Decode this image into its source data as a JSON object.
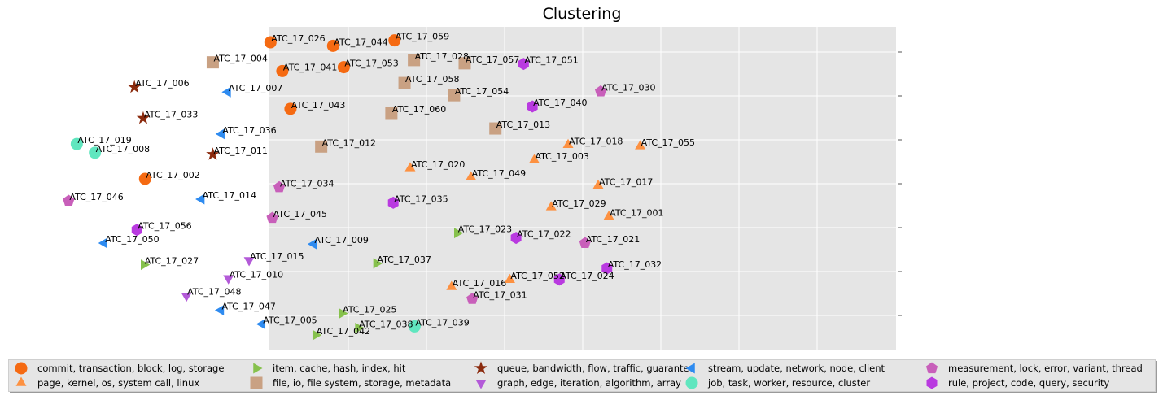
{
  "chart_data": {
    "type": "scatter",
    "title": "Clustering",
    "xlabel": "",
    "ylabel": "",
    "grid": true,
    "legend_position": "bottom",
    "xlim": [
      0,
      100
    ],
    "ylim": [
      0,
      100
    ],
    "series": [
      {
        "name": "commit, transaction, block, log, storage",
        "marker": "circle",
        "color": "#f56a12",
        "points": [
          {
            "label": "ATC_17_026",
            "x": 36.4,
            "y": 95.2
          },
          {
            "label": "ATC_17_044",
            "x": 46.4,
            "y": 94.1
          },
          {
            "label": "ATC_17_059",
            "x": 56.2,
            "y": 95.8
          },
          {
            "label": "ATC_17_053",
            "x": 48.1,
            "y": 87.5
          },
          {
            "label": "ATC_17_041",
            "x": 38.3,
            "y": 86.3
          },
          {
            "label": "ATC_17_043",
            "x": 39.6,
            "y": 74.6
          },
          {
            "label": "ATC_17_002",
            "x": 16.4,
            "y": 52.9
          }
        ]
      },
      {
        "name": "page, kernel, os, system call, linux",
        "marker": "triangle-up",
        "color": "#fd9141",
        "points": [
          {
            "label": "ATC_17_018",
            "x": 83.9,
            "y": 63.4
          },
          {
            "label": "ATC_17_055",
            "x": 95.4,
            "y": 63.0
          },
          {
            "label": "ATC_17_003",
            "x": 78.5,
            "y": 58.7
          },
          {
            "label": "ATC_17_020",
            "x": 58.7,
            "y": 56.2
          },
          {
            "label": "ATC_17_049",
            "x": 68.4,
            "y": 53.4
          },
          {
            "label": "ATC_17_017",
            "x": 88.7,
            "y": 50.8
          },
          {
            "label": "ATC_17_029",
            "x": 81.2,
            "y": 44.1
          },
          {
            "label": "ATC_17_001",
            "x": 90.4,
            "y": 41.2
          },
          {
            "label": "ATC_17_016",
            "x": 65.3,
            "y": 19.4
          },
          {
            "label": "ATC_17_052",
            "x": 74.6,
            "y": 21.6
          }
        ]
      },
      {
        "name": "item, cache, hash, index, hit",
        "marker": "triangle-right",
        "color": "#86c14c",
        "points": [
          {
            "label": "ATC_17_023",
            "x": 66.2,
            "y": 36.1
          },
          {
            "label": "ATC_17_037",
            "x": 53.3,
            "y": 26.7
          },
          {
            "label": "ATC_17_027",
            "x": 16.2,
            "y": 26.3
          },
          {
            "label": "ATC_17_025",
            "x": 47.8,
            "y": 11.2
          },
          {
            "label": "ATC_17_038",
            "x": 50.4,
            "y": 6.7
          },
          {
            "label": "ATC_17_042",
            "x": 43.6,
            "y": 4.5
          }
        ]
      },
      {
        "name": "file, io, file system, storage, metadata",
        "marker": "square",
        "color": "#c9a183",
        "points": [
          {
            "label": "ATC_17_004",
            "x": 27.2,
            "y": 89.0
          },
          {
            "label": "ATC_17_028",
            "x": 59.3,
            "y": 89.7
          },
          {
            "label": "ATC_17_057",
            "x": 67.4,
            "y": 88.7
          },
          {
            "label": "ATC_17_058",
            "x": 57.8,
            "y": 82.6
          },
          {
            "label": "ATC_17_054",
            "x": 65.7,
            "y": 78.8
          },
          {
            "label": "ATC_17_060",
            "x": 55.7,
            "y": 73.3
          },
          {
            "label": "ATC_17_013",
            "x": 72.3,
            "y": 68.5
          },
          {
            "label": "ATC_17_012",
            "x": 44.5,
            "y": 62.9
          }
        ]
      },
      {
        "name": "queue, bandwidth, flow, traffic, guarantee",
        "marker": "star",
        "color": "#8b2b0e",
        "points": [
          {
            "label": "ATC_17_006",
            "x": 14.7,
            "y": 81.3
          },
          {
            "label": "ATC_17_033",
            "x": 16.1,
            "y": 71.7
          },
          {
            "label": "ATC_17_011",
            "x": 27.2,
            "y": 60.5
          }
        ]
      },
      {
        "name": "graph, edge, iteration, algorithm, array",
        "marker": "triangle-down",
        "color": "#b35ad8",
        "points": [
          {
            "label": "ATC_17_015",
            "x": 33.0,
            "y": 27.7
          },
          {
            "label": "ATC_17_010",
            "x": 29.7,
            "y": 22.1
          },
          {
            "label": "ATC_17_048",
            "x": 23.0,
            "y": 16.7
          }
        ]
      },
      {
        "name": "stream, update, network, node, client",
        "marker": "triangle-left",
        "color": "#2e8bf0",
        "points": [
          {
            "label": "ATC_17_007",
            "x": 29.6,
            "y": 79.8
          },
          {
            "label": "ATC_17_036",
            "x": 28.6,
            "y": 66.8
          },
          {
            "label": "ATC_17_014",
            "x": 25.4,
            "y": 46.6
          },
          {
            "label": "ATC_17_050",
            "x": 9.9,
            "y": 33.0
          },
          {
            "label": "ATC_17_009",
            "x": 43.3,
            "y": 32.7
          },
          {
            "label": "ATC_17_047",
            "x": 28.5,
            "y": 12.2
          },
          {
            "label": "ATC_17_005",
            "x": 35.1,
            "y": 7.9
          }
        ]
      },
      {
        "name": "job, task, worker, resource, cluster",
        "marker": "circle",
        "color": "#60e6bf",
        "points": [
          {
            "label": "ATC_17_019",
            "x": 5.5,
            "y": 63.7
          },
          {
            "label": "ATC_17_008",
            "x": 8.4,
            "y": 61.0
          },
          {
            "label": "ATC_17_039",
            "x": 59.4,
            "y": 7.2
          }
        ]
      },
      {
        "name": "measurement, lock, error, variant, thread",
        "marker": "pentagon",
        "color": "#c85fba",
        "points": [
          {
            "label": "ATC_17_030",
            "x": 89.1,
            "y": 80.0
          },
          {
            "label": "ATC_17_034",
            "x": 37.8,
            "y": 50.3
          },
          {
            "label": "ATC_17_046",
            "x": 4.2,
            "y": 46.1
          },
          {
            "label": "ATC_17_045",
            "x": 36.7,
            "y": 40.8
          },
          {
            "label": "ATC_17_021",
            "x": 86.6,
            "y": 33.0
          },
          {
            "label": "ATC_17_031",
            "x": 68.6,
            "y": 15.7
          }
        ]
      },
      {
        "name": "rule, project, code, query, security",
        "marker": "hexagon",
        "color": "#b93ae0",
        "points": [
          {
            "label": "ATC_17_051",
            "x": 76.8,
            "y": 88.5
          },
          {
            "label": "ATC_17_040",
            "x": 78.2,
            "y": 75.3
          },
          {
            "label": "ATC_17_035",
            "x": 56.0,
            "y": 45.5
          },
          {
            "label": "ATC_17_056",
            "x": 15.1,
            "y": 37.1
          },
          {
            "label": "ATC_17_022",
            "x": 75.6,
            "y": 34.6
          },
          {
            "label": "ATC_17_032",
            "x": 90.1,
            "y": 25.2
          },
          {
            "label": "ATC_17_024",
            "x": 82.5,
            "y": 21.7
          }
        ]
      }
    ]
  },
  "colors": {
    "plot_background": "#e5e5e5",
    "grid": "#ffffff"
  }
}
